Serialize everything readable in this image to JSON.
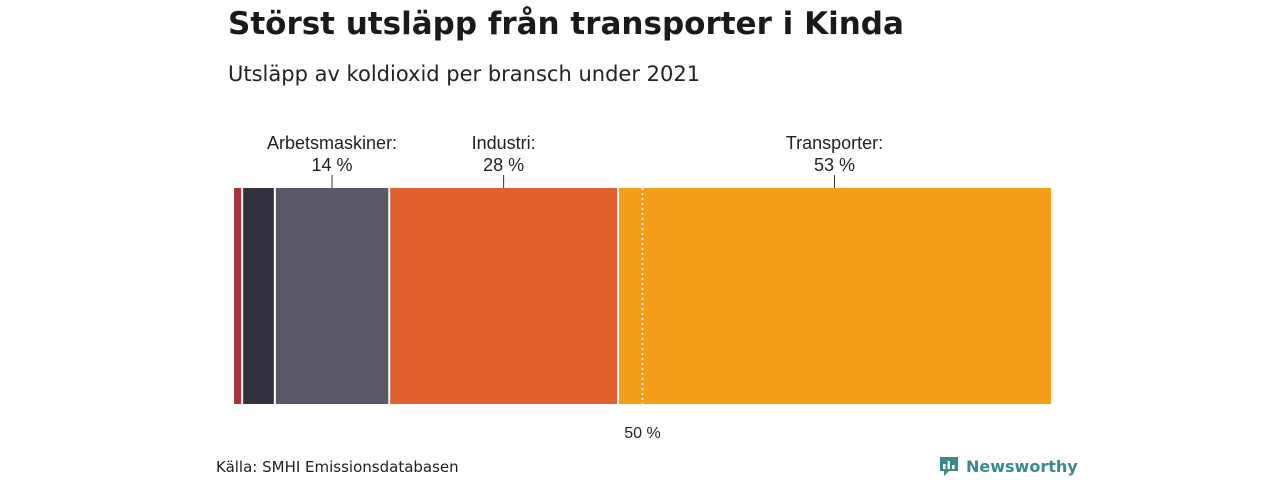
{
  "title": "Störst utsläpp från transporter i Kinda",
  "subtitle": "Utsläpp av koldioxid per bransch under 2021",
  "source": "Källa: SMHI Emissionsdatabasen",
  "brand": {
    "name": "Newsworthy",
    "icon": "newsworthy-logo-icon",
    "color": "#3a8a8c"
  },
  "chart_data": {
    "type": "stacked-bar-100",
    "title": "Störst utsläpp från transporter i Kinda",
    "subtitle": "Utsläpp av koldioxid per bransch under 2021",
    "unit": "%",
    "xlim": [
      0,
      100
    ],
    "segments": [
      {
        "name": "",
        "value": 1,
        "color": "#a8343f"
      },
      {
        "name": "",
        "value": 4,
        "color": "#32313d"
      },
      {
        "name": "Arbetsmaskiner",
        "value": 14,
        "color": "#5a5866",
        "label": "Arbetsmaskiner:",
        "value_label": "14 %"
      },
      {
        "name": "Industri",
        "value": 28,
        "color": "#e05f2c",
        "label": "Industri:",
        "value_label": "28 %"
      },
      {
        "name": "Transporter",
        "value": 53,
        "color": "#f59e1a",
        "label": "Transporter:",
        "value_label": "53 %"
      }
    ],
    "reference_line": {
      "value": 50,
      "label": "50 %"
    }
  }
}
